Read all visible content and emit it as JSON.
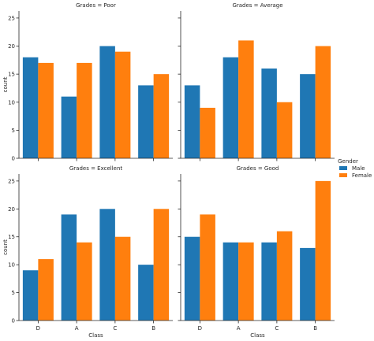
{
  "chart_data": {
    "type": "bar",
    "categories": [
      "D",
      "A",
      "C",
      "B"
    ],
    "xlabel": "Class",
    "ylabel": "count",
    "ylim": [
      0,
      26.25
    ],
    "yticks": [
      0,
      5,
      10,
      15,
      20,
      25
    ],
    "legend": {
      "title": "Gender",
      "placement": "right",
      "entries": [
        "Male",
        "Female"
      ]
    },
    "colors": {
      "Male": "#1f77b4",
      "Female": "#ff7f0e"
    },
    "grid": false,
    "panels": [
      {
        "title": "Grades = Poor",
        "series": [
          {
            "name": "Male",
            "values": [
              18,
              11,
              20,
              13
            ]
          },
          {
            "name": "Female",
            "values": [
              17,
              17,
              19,
              15
            ]
          }
        ]
      },
      {
        "title": "Grades = Average",
        "series": [
          {
            "name": "Male",
            "values": [
              13,
              18,
              16,
              15
            ]
          },
          {
            "name": "Female",
            "values": [
              9,
              21,
              10,
              20
            ]
          }
        ]
      },
      {
        "title": "Grades = Excellent",
        "series": [
          {
            "name": "Male",
            "values": [
              9,
              19,
              20,
              10
            ]
          },
          {
            "name": "Female",
            "values": [
              11,
              14,
              15,
              20
            ]
          }
        ]
      },
      {
        "title": "Grades = Good",
        "series": [
          {
            "name": "Male",
            "values": [
              15,
              14,
              14,
              13
            ]
          },
          {
            "name": "Female",
            "values": [
              19,
              14,
              16,
              25
            ]
          }
        ]
      }
    ]
  }
}
